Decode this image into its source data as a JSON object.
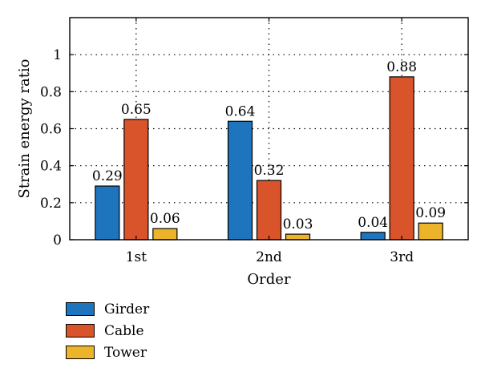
{
  "chart_data": {
    "type": "bar",
    "categories": [
      "1st",
      "2nd",
      "3rd"
    ],
    "series": [
      {
        "name": "Girder",
        "values": [
          0.29,
          0.64,
          0.04
        ],
        "labels": [
          "0.29",
          "0.64",
          "0.04"
        ],
        "color": "#1f74be"
      },
      {
        "name": "Cable",
        "values": [
          0.65,
          0.32,
          0.88
        ],
        "labels": [
          "0.65",
          "0.32",
          "0.88"
        ],
        "color": "#d9532b"
      },
      {
        "name": "Tower",
        "values": [
          0.06,
          0.03,
          0.09
        ],
        "labels": [
          "0.06",
          "0.03",
          "0.09"
        ],
        "color": "#ecb42b"
      }
    ],
    "xlabel": "Order",
    "ylabel": "Strain energy ratio",
    "ylim": [
      0,
      1.2
    ],
    "yticks": [
      0,
      0.2,
      0.4,
      0.6,
      0.8,
      1
    ],
    "ytick_labels": [
      "0",
      "0.2",
      "0.4",
      "0.6",
      "0.8",
      "1"
    ],
    "grid": "dotted",
    "legend_position": "bottom-left"
  }
}
